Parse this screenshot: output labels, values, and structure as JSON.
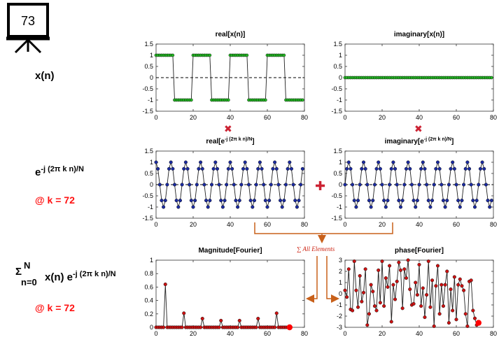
{
  "slide": {
    "number": "73",
    "label_x": "x(n)",
    "label_kernel_base": "e",
    "label_kernel_exp": "-j (2π k n)/N",
    "label_k": "@ k = 72",
    "label_sum_sigma": "Σ",
    "label_sum_upper": "N",
    "label_sum_lower": "n=0",
    "label_sum_term": "x(n) e",
    "label_sum_exp": "-j (2π k n)/N",
    "label_k2": "@ k = 72",
    "sum_annotation": "∑ All Elements",
    "multiply_symbol": "✖",
    "plus_symbol": "✚",
    "colors": {
      "green_marker": "#22bb22",
      "blue_marker": "#1a2aa0",
      "red_marker": "#cc1111",
      "highlight": "#ff0000",
      "arrow": "#c8601a",
      "operator": "#cc2233"
    }
  },
  "chart_data": [
    {
      "id": "real_x",
      "type": "line",
      "title": "real[x(n)]",
      "xlim": [
        0,
        80
      ],
      "ylim": [
        -1.5,
        1.5
      ],
      "xticks": [
        0,
        20,
        40,
        60,
        80
      ],
      "yticks": [
        1.5,
        1,
        0.5,
        0,
        -0.5,
        -1,
        -1.5
      ],
      "ytick_labels": [
        "1.5",
        "1",
        "0.5",
        "0",
        "-0.5",
        "-1",
        "-1.5"
      ],
      "zero_line": "dashed",
      "marker_color": "green",
      "n": [
        0,
        1,
        2,
        3,
        4,
        5,
        6,
        7,
        8,
        9,
        10,
        11,
        12,
        13,
        14,
        15,
        16,
        17,
        18,
        19,
        20,
        21,
        22,
        23,
        24,
        25,
        26,
        27,
        28,
        29,
        30,
        31,
        32,
        33,
        34,
        35,
        36,
        37,
        38,
        39,
        40,
        41,
        42,
        43,
        44,
        45,
        46,
        47,
        48,
        49,
        50,
        51,
        52,
        53,
        54,
        55,
        56,
        57,
        58,
        59,
        60,
        61,
        62,
        63,
        64,
        65,
        66,
        67,
        68,
        69,
        70,
        71,
        72,
        73,
        74,
        75,
        76,
        77,
        78,
        79
      ],
      "values": [
        1,
        1,
        1,
        1,
        1,
        1,
        1,
        1,
        1,
        1,
        -1,
        -1,
        -1,
        -1,
        -1,
        -1,
        -1,
        -1,
        -1,
        -1,
        1,
        1,
        1,
        1,
        1,
        1,
        1,
        1,
        1,
        1,
        -1,
        -1,
        -1,
        -1,
        -1,
        -1,
        -1,
        -1,
        -1,
        -1,
        1,
        1,
        1,
        1,
        1,
        1,
        1,
        1,
        1,
        1,
        -1,
        -1,
        -1,
        -1,
        -1,
        -1,
        -1,
        -1,
        -1,
        -1,
        1,
        1,
        1,
        1,
        1,
        1,
        1,
        1,
        1,
        1,
        -1,
        -1,
        -1,
        -1,
        -1,
        -1,
        -1,
        -1,
        -1,
        -1
      ]
    },
    {
      "id": "imag_x",
      "type": "line",
      "title": "imaginary[x(n)]",
      "xlim": [
        0,
        80
      ],
      "ylim": [
        -1.5,
        1.5
      ],
      "xticks": [
        0,
        20,
        40,
        60,
        80
      ],
      "yticks": [
        1.5,
        1,
        0.5,
        0,
        -0.5,
        -1,
        -1.5
      ],
      "ytick_labels": [
        "1.5",
        "1",
        "0.5",
        "0",
        "-0.5",
        "-1",
        "-1.5"
      ],
      "zero_line": "dashed",
      "marker_color": "green",
      "n": [
        0,
        1,
        2,
        3,
        4,
        5,
        6,
        7,
        8,
        9,
        10,
        11,
        12,
        13,
        14,
        15,
        16,
        17,
        18,
        19,
        20,
        21,
        22,
        23,
        24,
        25,
        26,
        27,
        28,
        29,
        30,
        31,
        32,
        33,
        34,
        35,
        36,
        37,
        38,
        39,
        40,
        41,
        42,
        43,
        44,
        45,
        46,
        47,
        48,
        49,
        50,
        51,
        52,
        53,
        54,
        55,
        56,
        57,
        58,
        59,
        60,
        61,
        62,
        63,
        64,
        65,
        66,
        67,
        68,
        69,
        70,
        71,
        72,
        73,
        74,
        75,
        76,
        77,
        78,
        79
      ],
      "values": [
        0,
        0,
        0,
        0,
        0,
        0,
        0,
        0,
        0,
        0,
        0,
        0,
        0,
        0,
        0,
        0,
        0,
        0,
        0,
        0,
        0,
        0,
        0,
        0,
        0,
        0,
        0,
        0,
        0,
        0,
        0,
        0,
        0,
        0,
        0,
        0,
        0,
        0,
        0,
        0,
        0,
        0,
        0,
        0,
        0,
        0,
        0,
        0,
        0,
        0,
        0,
        0,
        0,
        0,
        0,
        0,
        0,
        0,
        0,
        0,
        0,
        0,
        0,
        0,
        0,
        0,
        0,
        0,
        0,
        0,
        0,
        0,
        0,
        0,
        0,
        0,
        0,
        0,
        0,
        0
      ]
    },
    {
      "id": "real_kernel",
      "type": "line",
      "title_base": "real[e",
      "title_sup": "-j (2π k n)/N",
      "title_end": "]",
      "xlim": [
        0,
        80
      ],
      "ylim": [
        -1.5,
        1.5
      ],
      "xticks": [
        0,
        20,
        40,
        60,
        80
      ],
      "yticks": [
        1.5,
        1,
        0.5,
        0,
        -0.5,
        -1,
        -1.5
      ],
      "ytick_labels": [
        "1.5",
        "1",
        "0.5",
        "0",
        "-0.5",
        "-1",
        "-1.5"
      ],
      "zero_line": "dashed",
      "marker_color": "blue",
      "n": [
        0,
        1,
        2,
        3,
        4,
        5,
        6,
        7,
        8,
        9,
        10,
        11,
        12,
        13,
        14,
        15,
        16,
        17,
        18,
        19,
        20,
        21,
        22,
        23,
        24,
        25,
        26,
        27,
        28,
        29,
        30,
        31,
        32,
        33,
        34,
        35,
        36,
        37,
        38,
        39,
        40,
        41,
        42,
        43,
        44,
        45,
        46,
        47,
        48,
        49,
        50,
        51,
        52,
        53,
        54,
        55,
        56,
        57,
        58,
        59,
        60,
        61,
        62,
        63,
        64,
        65,
        66,
        67,
        68,
        69,
        70,
        71,
        72,
        73,
        74,
        75,
        76,
        77,
        78,
        79
      ],
      "values": [
        1,
        0.707,
        0,
        -0.707,
        -1,
        -0.707,
        0,
        0.707,
        1,
        0.707,
        0,
        -0.707,
        -1,
        -0.707,
        0,
        0.707,
        1,
        0.707,
        0,
        -0.707,
        -1,
        -0.707,
        0,
        0.707,
        1,
        0.707,
        0,
        -0.707,
        -1,
        -0.707,
        0,
        0.707,
        1,
        0.707,
        0,
        -0.707,
        -1,
        -0.707,
        0,
        0.707,
        1,
        0.707,
        0,
        -0.707,
        -1,
        -0.707,
        0,
        0.707,
        1,
        0.707,
        0,
        -0.707,
        -1,
        -0.707,
        0,
        0.707,
        1,
        0.707,
        0,
        -0.707,
        -1,
        -0.707,
        0,
        0.707,
        1,
        0.707,
        0,
        -0.707,
        -1,
        -0.707,
        0,
        0.707,
        1,
        0.707,
        0,
        -0.707,
        -1,
        -0.707,
        0,
        0.707
      ]
    },
    {
      "id": "imag_kernel",
      "type": "line",
      "title_base": "imaginary[e",
      "title_sup": "-j (2π k n)/N",
      "title_end": "]",
      "xlim": [
        0,
        80
      ],
      "ylim": [
        -1.5,
        1.5
      ],
      "xticks": [
        0,
        20,
        40,
        60,
        80
      ],
      "yticks": [
        1.5,
        1,
        0.5,
        0,
        -0.5,
        -1,
        -1.5
      ],
      "ytick_labels": [
        "1.5",
        "1",
        "0.5",
        "0",
        "-0.5",
        "-1",
        "-1.5"
      ],
      "zero_line": "dashed",
      "marker_color": "blue",
      "n": [
        0,
        1,
        2,
        3,
        4,
        5,
        6,
        7,
        8,
        9,
        10,
        11,
        12,
        13,
        14,
        15,
        16,
        17,
        18,
        19,
        20,
        21,
        22,
        23,
        24,
        25,
        26,
        27,
        28,
        29,
        30,
        31,
        32,
        33,
        34,
        35,
        36,
        37,
        38,
        39,
        40,
        41,
        42,
        43,
        44,
        45,
        46,
        47,
        48,
        49,
        50,
        51,
        52,
        53,
        54,
        55,
        56,
        57,
        58,
        59,
        60,
        61,
        62,
        63,
        64,
        65,
        66,
        67,
        68,
        69,
        70,
        71,
        72,
        73,
        74,
        75,
        76,
        77,
        78,
        79
      ],
      "values": [
        0,
        0.707,
        1,
        0.707,
        0,
        -0.707,
        -1,
        -0.707,
        0,
        0.707,
        1,
        0.707,
        0,
        -0.707,
        -1,
        -0.707,
        0,
        0.707,
        1,
        0.707,
        0,
        -0.707,
        -1,
        -0.707,
        0,
        0.707,
        1,
        0.707,
        0,
        -0.707,
        -1,
        -0.707,
        0,
        0.707,
        1,
        0.707,
        0,
        -0.707,
        -1,
        -0.707,
        0,
        0.707,
        1,
        0.707,
        0,
        -0.707,
        -1,
        -0.707,
        0,
        0.707,
        1,
        0.707,
        0,
        -0.707,
        -1,
        -0.707,
        0,
        0.707,
        1,
        0.707,
        0,
        -0.707,
        -1,
        -0.707,
        0,
        0.707,
        1,
        0.707,
        0,
        -0.707,
        -1,
        -0.707,
        0,
        0.707,
        1,
        0.707,
        0,
        -0.707,
        -1,
        -0.707
      ]
    },
    {
      "id": "magnitude",
      "type": "line",
      "title": "Magnitude[Fourier]",
      "xlim": [
        0,
        80
      ],
      "ylim": [
        0,
        1
      ],
      "xticks": [
        0,
        20,
        40,
        60,
        80
      ],
      "yticks": [
        1,
        0.8,
        0.6,
        0.4,
        0.2,
        0
      ],
      "ytick_labels": [
        "1",
        "0.8",
        "0.6",
        "0.4",
        "0.2",
        "0"
      ],
      "marker_color": "red",
      "highlight_k": 72,
      "k": [
        0,
        1,
        2,
        3,
        4,
        5,
        6,
        7,
        8,
        9,
        10,
        11,
        12,
        13,
        14,
        15,
        16,
        17,
        18,
        19,
        20,
        21,
        22,
        23,
        24,
        25,
        26,
        27,
        28,
        29,
        30,
        31,
        32,
        33,
        34,
        35,
        36,
        37,
        38,
        39,
        40,
        41,
        42,
        43,
        44,
        45,
        46,
        47,
        48,
        49,
        50,
        51,
        52,
        53,
        54,
        55,
        56,
        57,
        58,
        59,
        60,
        61,
        62,
        63,
        64,
        65,
        66,
        67,
        68,
        69,
        70,
        71,
        72
      ],
      "values": [
        0,
        0,
        0,
        0,
        0,
        0.64,
        0,
        0,
        0,
        0,
        0,
        0,
        0,
        0,
        0,
        0.21,
        0,
        0,
        0,
        0,
        0,
        0,
        0,
        0,
        0,
        0.13,
        0,
        0,
        0,
        0,
        0,
        0,
        0,
        0,
        0,
        0.1,
        0,
        0,
        0,
        0,
        0,
        0,
        0,
        0,
        0,
        0.1,
        0,
        0,
        0,
        0,
        0,
        0,
        0,
        0,
        0,
        0.13,
        0,
        0,
        0,
        0,
        0,
        0,
        0,
        0,
        0,
        0.21,
        0,
        0,
        0,
        0,
        0,
        0,
        0
      ]
    },
    {
      "id": "phase",
      "type": "line",
      "title": "phase[Fourier]",
      "xlim": [
        0,
        80
      ],
      "ylim": [
        -3,
        3
      ],
      "xticks": [
        0,
        20,
        40,
        60,
        80
      ],
      "yticks": [
        3,
        2,
        1,
        0,
        -1,
        -2,
        -3
      ],
      "ytick_labels": [
        "3",
        "2",
        "1",
        "0",
        "-1",
        "-2",
        "-3"
      ],
      "marker_color": "red",
      "highlight_k": 72,
      "k": [
        0,
        1,
        2,
        3,
        4,
        5,
        6,
        7,
        8,
        9,
        10,
        11,
        12,
        13,
        14,
        15,
        16,
        17,
        18,
        19,
        20,
        21,
        22,
        23,
        24,
        25,
        26,
        27,
        28,
        29,
        30,
        31,
        32,
        33,
        34,
        35,
        36,
        37,
        38,
        39,
        40,
        41,
        42,
        43,
        44,
        45,
        46,
        47,
        48,
        49,
        50,
        51,
        52,
        53,
        54,
        55,
        56,
        57,
        58,
        59,
        60,
        61,
        62,
        63,
        64,
        65,
        66,
        67,
        68,
        69,
        70,
        71,
        72
      ],
      "values": [
        0.3,
        -0.3,
        2.2,
        -1.4,
        -1.5,
        2.9,
        0.3,
        -1.2,
        1.6,
        -0.7,
        0.1,
        2.2,
        -2.8,
        -1.8,
        0.8,
        0.2,
        -1.1,
        -1.5,
        2.1,
        -0.8,
        2.9,
        -1.1,
        1.4,
        0.6,
        2.5,
        -2.5,
        0.8,
        -0.5,
        1.1,
        2.8,
        2.1,
        -1.3,
        2.2,
        1.4,
        3.0,
        0.4,
        -1.0,
        -0.9,
        1.0,
        -0.1,
        2.6,
        -1.1,
        0.5,
        -2.1,
        -0.1,
        2.9,
        -1.2,
        1.2,
        -2.9,
        0.7,
        2.5,
        -1.8,
        0.8,
        -1.1,
        0.8,
        2.0,
        -2.6,
        0.4,
        -1.5,
        1.5,
        -2.3,
        0.8,
        1.3,
        0.7,
        0.3,
        -1.8,
        -2.9,
        1.1,
        1.2,
        -1.5,
        -2.2,
        -2.8,
        -2.6
      ]
    }
  ]
}
